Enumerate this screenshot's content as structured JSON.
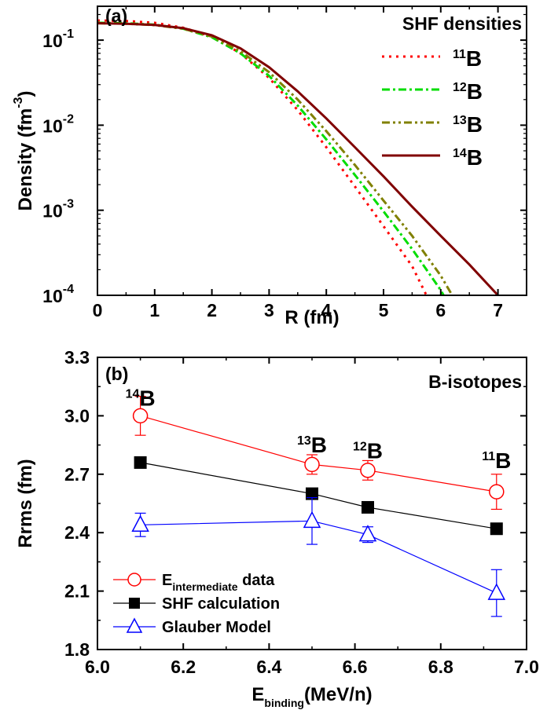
{
  "colors": {
    "red": "#ff0000",
    "green": "#00dd00",
    "olive": "#808000",
    "darkred": "#800000",
    "black": "#000000",
    "blue": "#0000ff"
  },
  "chart_data": [
    {
      "type": "line",
      "panel": "(a)",
      "legend_title": "SHF densities",
      "xlabel": "R (fm)",
      "ylabel_main": "Density (fm",
      "ylabel_sup": "-3",
      "ylabel_close": ")",
      "xlim": [
        0,
        7.5
      ],
      "ylim": [
        0.0001,
        0.25
      ],
      "yscale": "log",
      "x_ticks": [
        "0",
        "1",
        "2",
        "3",
        "4",
        "5",
        "6",
        "7"
      ],
      "y_ticks": [
        {
          "base": "10",
          "exp": "-4",
          "value": 0.0001
        },
        {
          "base": "10",
          "exp": "-3",
          "value": 0.001
        },
        {
          "base": "10",
          "exp": "-2",
          "value": 0.01
        },
        {
          "base": "10",
          "exp": "-1",
          "value": 0.1
        }
      ],
      "series": [
        {
          "name_sup": "11",
          "name_el": "B",
          "style": "dot",
          "color": "red",
          "points": [
            [
              0,
              0.17
            ],
            [
              0.5,
              0.168
            ],
            [
              1.0,
              0.16
            ],
            [
              1.5,
              0.14
            ],
            [
              2.0,
              0.11
            ],
            [
              2.5,
              0.07
            ],
            [
              3.0,
              0.036
            ],
            [
              3.5,
              0.015
            ],
            [
              4.0,
              0.0055
            ],
            [
              4.5,
              0.0019
            ],
            [
              5.0,
              0.00065
            ],
            [
              5.5,
              0.00022
            ],
            [
              5.75,
              0.0001
            ]
          ]
        },
        {
          "name_sup": "12",
          "name_el": "B",
          "style": "dashdot",
          "color": "green",
          "points": [
            [
              0,
              0.16
            ],
            [
              0.5,
              0.158
            ],
            [
              1.0,
              0.152
            ],
            [
              1.5,
              0.136
            ],
            [
              2.0,
              0.108
            ],
            [
              2.5,
              0.07
            ],
            [
              3.0,
              0.038
            ],
            [
              3.5,
              0.017
            ],
            [
              4.0,
              0.0068
            ],
            [
              4.5,
              0.0026
            ],
            [
              5.0,
              0.00097
            ],
            [
              5.5,
              0.00035
            ],
            [
              6.0,
              0.000115
            ],
            [
              6.05,
              0.0001
            ]
          ]
        },
        {
          "name_sup": "13",
          "name_el": "B",
          "style": "dashdotdot",
          "color": "olive",
          "points": [
            [
              0,
              0.158
            ],
            [
              0.5,
              0.156
            ],
            [
              1.0,
              0.15
            ],
            [
              1.5,
              0.136
            ],
            [
              2.0,
              0.11
            ],
            [
              2.5,
              0.074
            ],
            [
              3.0,
              0.042
            ],
            [
              3.5,
              0.02
            ],
            [
              4.0,
              0.0085
            ],
            [
              4.5,
              0.0034
            ],
            [
              5.0,
              0.0013
            ],
            [
              5.5,
              0.0005
            ],
            [
              6.0,
              0.00017
            ],
            [
              6.2,
              0.0001
            ]
          ]
        },
        {
          "name_sup": "14",
          "name_el": "B",
          "style": "solid",
          "color": "darkred",
          "points": [
            [
              0,
              0.158
            ],
            [
              0.5,
              0.156
            ],
            [
              1.0,
              0.151
            ],
            [
              1.5,
              0.138
            ],
            [
              2.0,
              0.114
            ],
            [
              2.5,
              0.08
            ],
            [
              3.0,
              0.048
            ],
            [
              3.5,
              0.025
            ],
            [
              4.0,
              0.012
            ],
            [
              4.5,
              0.0055
            ],
            [
              5.0,
              0.0025
            ],
            [
              5.5,
              0.0011
            ],
            [
              6.0,
              0.0005
            ],
            [
              6.5,
              0.00023
            ],
            [
              7.0,
              0.0001
            ]
          ]
        }
      ]
    },
    {
      "type": "line",
      "panel": "(b)",
      "legend_title": "B-isotopes",
      "xlabel_main": "E",
      "xlabel_sub": "binding",
      "xlabel_rest": "(MeV/n)",
      "ylabel": "Rrms (fm)",
      "xlim": [
        6.0,
        7.0
      ],
      "ylim": [
        1.8,
        3.3
      ],
      "x_ticks": [
        "6.0",
        "6.2",
        "6.4",
        "6.6",
        "6.8",
        "7.0"
      ],
      "y_ticks": [
        "1.8",
        "2.1",
        "2.4",
        "2.7",
        "3.0",
        "3.3"
      ],
      "x": [
        6.1,
        6.5,
        6.63,
        6.93
      ],
      "isotope_labels": [
        {
          "sup": "14",
          "el": "B",
          "x": 6.1,
          "y": 3.1
        },
        {
          "sup": "13",
          "el": "B",
          "x": 6.5,
          "y": 2.86
        },
        {
          "sup": "12",
          "el": "B",
          "x": 6.63,
          "y": 2.83
        },
        {
          "sup": "11",
          "el": "B",
          "x": 6.93,
          "y": 2.78
        }
      ],
      "series": [
        {
          "legend_main": "E",
          "legend_sub": "intermediate",
          "legend_rest": " data",
          "marker": "open-circle",
          "color": "red",
          "values": [
            3.0,
            2.75,
            2.72,
            2.61
          ],
          "errors": [
            0.1,
            0.05,
            0.05,
            0.09
          ]
        },
        {
          "legend_main": "SHF calculation",
          "marker": "filled-square",
          "color": "black",
          "values": [
            2.76,
            2.6,
            2.53,
            2.42
          ]
        },
        {
          "legend_main": "Glauber Model",
          "marker": "open-triangle",
          "color": "blue",
          "values": [
            2.44,
            2.46,
            2.39,
            2.09
          ],
          "errors": [
            0.06,
            0.12,
            0.04,
            0.12
          ]
        }
      ]
    }
  ]
}
